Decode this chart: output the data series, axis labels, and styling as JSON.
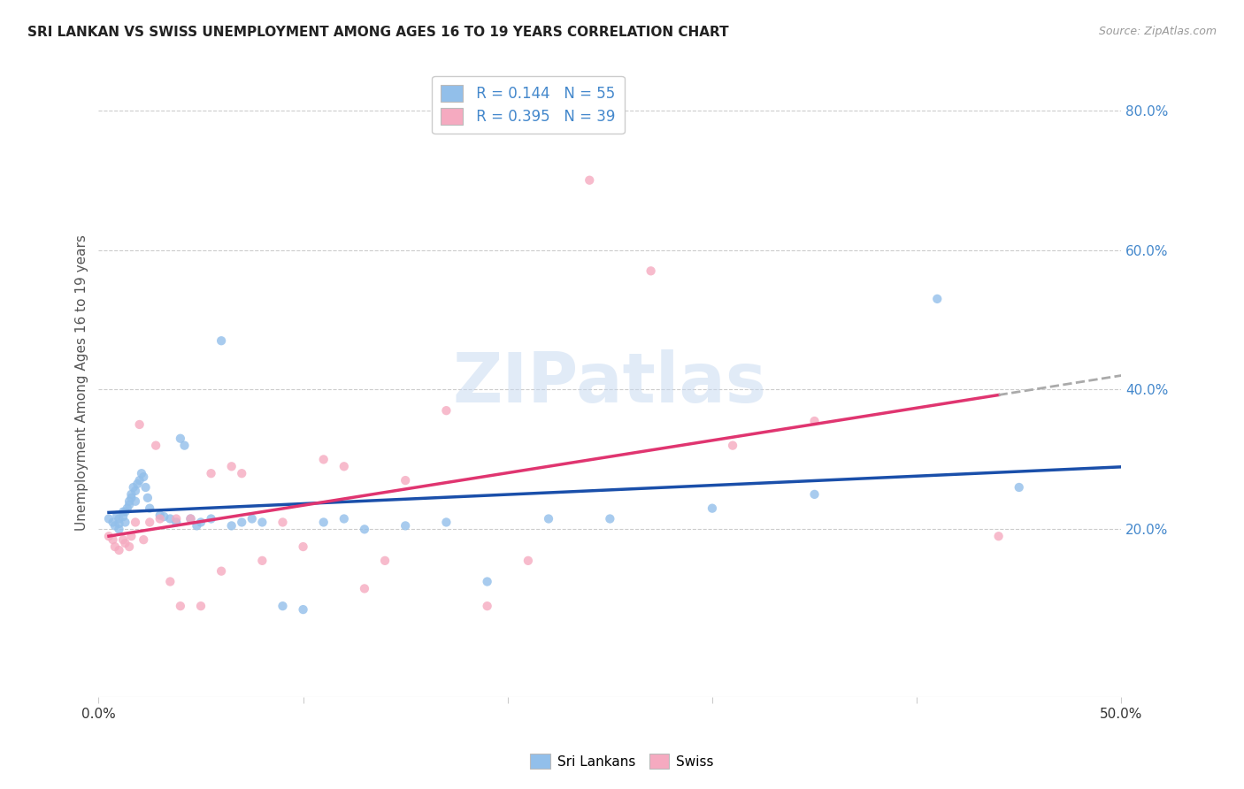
{
  "title": "SRI LANKAN VS SWISS UNEMPLOYMENT AMONG AGES 16 TO 19 YEARS CORRELATION CHART",
  "source": "Source: ZipAtlas.com",
  "ylabel": "Unemployment Among Ages 16 to 19 years",
  "xlim": [
    0.0,
    0.5
  ],
  "ylim": [
    -0.04,
    0.86
  ],
  "xticks": [
    0.0,
    0.1,
    0.2,
    0.3,
    0.4,
    0.5
  ],
  "xticklabels": [
    "0.0%",
    "",
    "",
    "",
    "",
    "50.0%"
  ],
  "yticks_right": [
    0.2,
    0.4,
    0.6,
    0.8
  ],
  "yticklabels_right": [
    "20.0%",
    "40.0%",
    "60.0%",
    "80.0%"
  ],
  "sri_lankans_color": "#92bfea",
  "swiss_color": "#f5aac0",
  "sri_lankans_line_color": "#1a4faa",
  "swiss_line_color": "#e03570",
  "R_sri": 0.144,
  "N_sri": 55,
  "R_swiss": 0.395,
  "N_swiss": 39,
  "legend_label_sri": "Sri Lankans",
  "legend_label_swiss": "Swiss",
  "watermark": "ZIPatlas",
  "background_color": "#ffffff",
  "grid_color": "#cccccc",
  "title_color": "#222222",
  "axis_label_color": "#555555",
  "right_tick_color": "#4488cc",
  "scatter_alpha": 0.8,
  "scatter_size": 55,
  "sri_lankans_x": [
    0.005,
    0.007,
    0.008,
    0.009,
    0.01,
    0.01,
    0.01,
    0.012,
    0.012,
    0.013,
    0.013,
    0.014,
    0.015,
    0.015,
    0.016,
    0.016,
    0.017,
    0.018,
    0.018,
    0.019,
    0.02,
    0.021,
    0.022,
    0.023,
    0.024,
    0.025,
    0.03,
    0.032,
    0.035,
    0.038,
    0.04,
    0.042,
    0.045,
    0.048,
    0.05,
    0.055,
    0.06,
    0.065,
    0.07,
    0.075,
    0.08,
    0.09,
    0.1,
    0.11,
    0.12,
    0.13,
    0.15,
    0.17,
    0.19,
    0.22,
    0.25,
    0.3,
    0.35,
    0.41,
    0.45
  ],
  "sri_lankans_y": [
    0.215,
    0.21,
    0.205,
    0.22,
    0.215,
    0.208,
    0.2,
    0.225,
    0.218,
    0.21,
    0.225,
    0.23,
    0.24,
    0.235,
    0.25,
    0.245,
    0.26,
    0.255,
    0.24,
    0.265,
    0.27,
    0.28,
    0.275,
    0.26,
    0.245,
    0.23,
    0.22,
    0.218,
    0.215,
    0.21,
    0.33,
    0.32,
    0.215,
    0.205,
    0.21,
    0.215,
    0.47,
    0.205,
    0.21,
    0.215,
    0.21,
    0.09,
    0.085,
    0.21,
    0.215,
    0.2,
    0.205,
    0.21,
    0.125,
    0.215,
    0.215,
    0.23,
    0.25,
    0.53,
    0.26
  ],
  "swiss_x": [
    0.005,
    0.007,
    0.008,
    0.01,
    0.012,
    0.013,
    0.015,
    0.016,
    0.018,
    0.02,
    0.022,
    0.025,
    0.028,
    0.03,
    0.035,
    0.038,
    0.04,
    0.045,
    0.05,
    0.055,
    0.06,
    0.065,
    0.07,
    0.08,
    0.09,
    0.1,
    0.11,
    0.12,
    0.13,
    0.14,
    0.15,
    0.17,
    0.19,
    0.21,
    0.24,
    0.27,
    0.31,
    0.35,
    0.44
  ],
  "swiss_y": [
    0.19,
    0.185,
    0.175,
    0.17,
    0.185,
    0.18,
    0.175,
    0.19,
    0.21,
    0.35,
    0.185,
    0.21,
    0.32,
    0.215,
    0.125,
    0.215,
    0.09,
    0.215,
    0.09,
    0.28,
    0.14,
    0.29,
    0.28,
    0.155,
    0.21,
    0.175,
    0.3,
    0.29,
    0.115,
    0.155,
    0.27,
    0.37,
    0.09,
    0.155,
    0.7,
    0.57,
    0.32,
    0.355,
    0.19
  ]
}
